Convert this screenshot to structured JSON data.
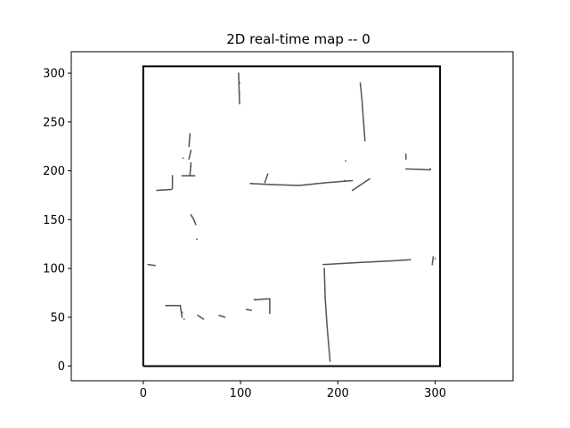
{
  "chart_data": {
    "type": "scatter",
    "title": "2D real-time map -- 0",
    "xlabel": "",
    "ylabel": "",
    "xlim": [
      -74,
      380
    ],
    "ylim": [
      -15,
      322
    ],
    "xticks": [
      0,
      100,
      200,
      300
    ],
    "yticks": [
      0,
      50,
      100,
      150,
      200,
      250,
      300
    ],
    "grid": false,
    "legend": "none",
    "boundary": {
      "x": [
        0,
        305,
        305,
        0,
        0
      ],
      "y": [
        0,
        0,
        307,
        307,
        0
      ],
      "color": "#000000"
    },
    "points_color": "#555555",
    "segments": [
      [
        [
          40,
          195
        ],
        [
          53,
          195
        ]
      ],
      [
        [
          30,
          182
        ],
        [
          30,
          195
        ]
      ],
      [
        [
          14,
          180
        ],
        [
          30,
          181
        ]
      ],
      [
        [
          48,
          195
        ],
        [
          49,
          208
        ]
      ],
      [
        [
          47,
          212
        ],
        [
          49,
          221
        ]
      ],
      [
        [
          47,
          225
        ],
        [
          48,
          238
        ]
      ],
      [
        [
          110,
          187
        ],
        [
          130,
          186
        ],
        [
          160,
          185
        ],
        [
          190,
          188
        ],
        [
          215,
          190
        ]
      ],
      [
        [
          125,
          188
        ],
        [
          128,
          197
        ]
      ],
      [
        [
          215,
          180
        ],
        [
          233,
          192
        ]
      ],
      [
        [
          270,
          202
        ],
        [
          295,
          201
        ]
      ],
      [
        [
          270,
          212
        ],
        [
          270,
          217
        ]
      ],
      [
        [
          185,
          104
        ],
        [
          220,
          106
        ],
        [
          260,
          108
        ],
        [
          275,
          109
        ]
      ],
      [
        [
          186,
          100
        ],
        [
          187,
          70
        ],
        [
          189,
          40
        ],
        [
          192,
          5
        ]
      ],
      [
        [
          223,
          290
        ],
        [
          225,
          270
        ],
        [
          226,
          255
        ],
        [
          227,
          243
        ],
        [
          228,
          230
        ]
      ],
      [
        [
          98,
          300
        ],
        [
          99,
          268
        ]
      ],
      [
        [
          49,
          155
        ],
        [
          52,
          150
        ],
        [
          54,
          145
        ]
      ],
      [
        [
          23,
          62
        ],
        [
          38,
          62
        ]
      ],
      [
        [
          38,
          62
        ],
        [
          40,
          50
        ]
      ],
      [
        [
          114,
          68
        ],
        [
          130,
          69
        ]
      ],
      [
        [
          130,
          69
        ],
        [
          130,
          54
        ]
      ],
      [
        [
          56,
          52
        ],
        [
          62,
          48
        ]
      ],
      [
        [
          78,
          52
        ],
        [
          84,
          50
        ]
      ],
      [
        [
          106,
          58
        ],
        [
          112,
          57
        ]
      ],
      [
        [
          5,
          104
        ],
        [
          13,
          103
        ]
      ],
      [
        [
          297,
          104
        ],
        [
          298,
          112
        ]
      ]
    ],
    "points": [
      [
        208,
        210
      ],
      [
        207,
        190
      ],
      [
        55,
        130
      ],
      [
        41,
        213
      ],
      [
        49,
        205
      ],
      [
        40,
        55
      ],
      [
        42,
        48
      ],
      [
        300,
        110
      ],
      [
        295,
        202
      ],
      [
        99,
        290
      ],
      [
        99,
        280
      ]
    ]
  }
}
